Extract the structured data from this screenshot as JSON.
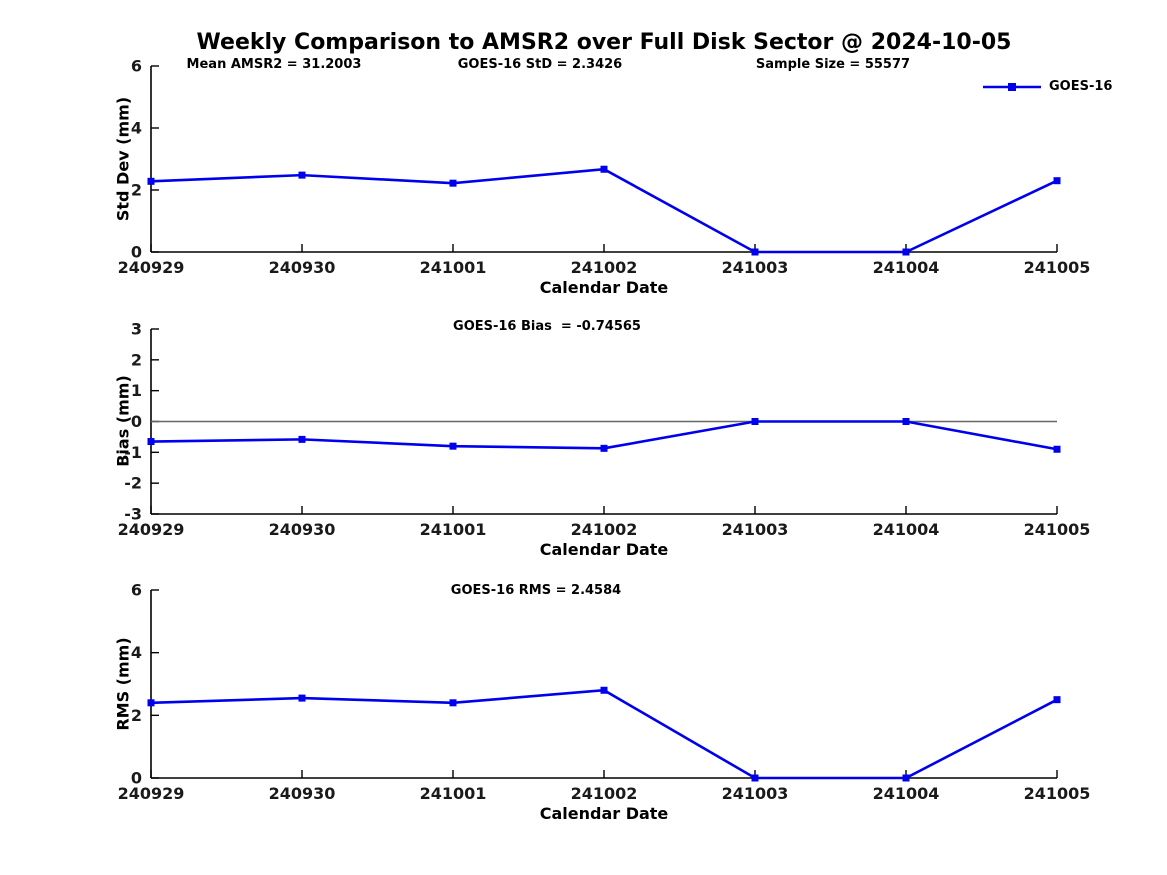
{
  "title": "Weekly Comparison to AMSR2 over Full Disk Sector @ 2024-10-05",
  "colors": {
    "series": "#0000ee",
    "axis": "#000000",
    "zero_line": "#666666",
    "background": "#ffffff"
  },
  "legend": {
    "label": "GOES-16",
    "position": "upper right",
    "marker": "square"
  },
  "chart_data": [
    {
      "type": "line",
      "panel": "std-dev",
      "annotations": [
        "Mean AMSR2 = 31.2003",
        "GOES-16 StD = 2.3426",
        "Sample Size = 55577"
      ],
      "categories": [
        "240929",
        "240930",
        "241001",
        "241002",
        "241003",
        "241004",
        "241005"
      ],
      "series": [
        {
          "name": "GOES-16",
          "values": [
            2.28,
            2.48,
            2.22,
            2.67,
            0,
            0,
            2.3
          ]
        }
      ],
      "xlabel": "Calendar Date",
      "ylabel": "Std Dev (mm)",
      "ylim": [
        0,
        6
      ],
      "yticks": [
        0,
        2,
        4,
        6
      ],
      "zero_line": false,
      "grid": false,
      "legend_visible": true
    },
    {
      "type": "line",
      "panel": "bias",
      "annotations": [
        "GOES-16 Bias  = -0.74565"
      ],
      "categories": [
        "240929",
        "240930",
        "241001",
        "241002",
        "241003",
        "241004",
        "241005"
      ],
      "series": [
        {
          "name": "GOES-16",
          "values": [
            -0.65,
            -0.58,
            -0.8,
            -0.87,
            0,
            0,
            -0.9
          ]
        }
      ],
      "xlabel": "Calendar Date",
      "ylabel": "Bias (mm)",
      "ylim": [
        -3,
        3
      ],
      "yticks": [
        -3,
        -2,
        -1,
        0,
        1,
        2,
        3
      ],
      "zero_line": true,
      "grid": false,
      "legend_visible": false
    },
    {
      "type": "line",
      "panel": "rms",
      "annotations": [
        "GOES-16 RMS = 2.4584"
      ],
      "categories": [
        "240929",
        "240930",
        "241001",
        "241002",
        "241003",
        "241004",
        "241005"
      ],
      "series": [
        {
          "name": "GOES-16",
          "values": [
            2.4,
            2.55,
            2.4,
            2.8,
            0,
            0,
            2.5
          ]
        }
      ],
      "xlabel": "Calendar Date",
      "ylabel": "RMS (mm)",
      "ylim": [
        0,
        6
      ],
      "yticks": [
        0,
        2,
        4,
        6
      ],
      "zero_line": false,
      "grid": false,
      "legend_visible": false
    }
  ]
}
